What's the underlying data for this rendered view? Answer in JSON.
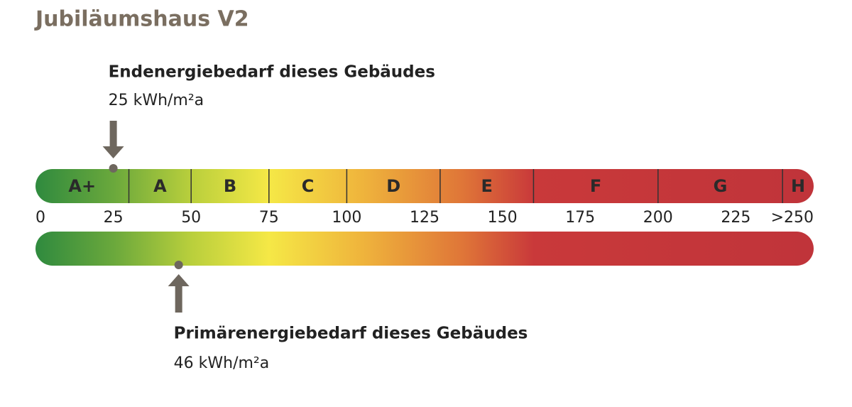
{
  "chart_data": {
    "type": "energy-scale",
    "title": "Jubiläumshaus V2",
    "xlim": [
      0,
      250
    ],
    "xticks": [
      0,
      25,
      50,
      75,
      100,
      125,
      150,
      175,
      200,
      225,
      {
        "value": 250,
        "label": ">250"
      }
    ],
    "classes": [
      {
        "name": "A+",
        "from": 0,
        "to": 30
      },
      {
        "name": "A",
        "from": 30,
        "to": 50
      },
      {
        "name": "B",
        "from": 50,
        "to": 75
      },
      {
        "name": "C",
        "from": 75,
        "to": 100
      },
      {
        "name": "D",
        "from": 100,
        "to": 130
      },
      {
        "name": "E",
        "from": 130,
        "to": 160
      },
      {
        "name": "F",
        "from": 160,
        "to": 200
      },
      {
        "name": "G",
        "from": 200,
        "to": 240
      },
      {
        "name": "H",
        "from": 240,
        "to": 250
      }
    ],
    "markers": [
      {
        "name": "Endenergiebedarf dieses Gebäudes",
        "value": 25,
        "value_label": "25 kWh/m²a"
      },
      {
        "name": "Primärenergiebedarf dieses Gebäudes",
        "value": 46,
        "value_label": "46 kWh/m²a"
      }
    ]
  }
}
